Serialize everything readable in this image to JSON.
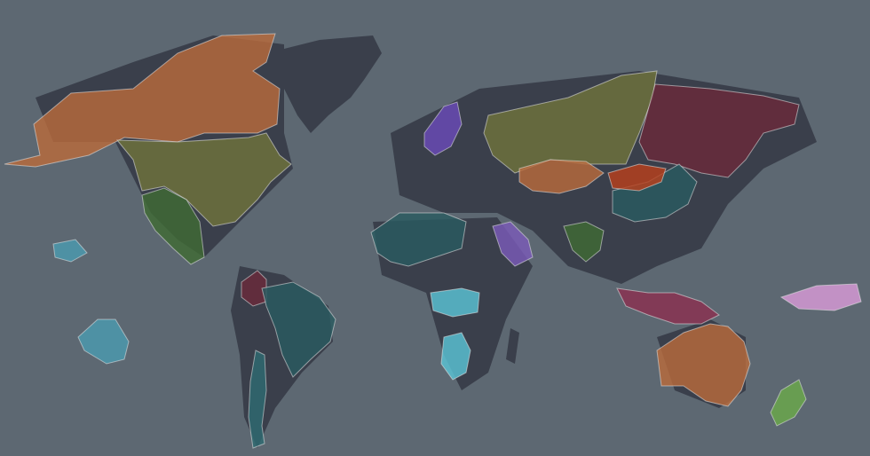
{
  "map": {
    "background_color": "#5d6872",
    "land_color": "#3a3f4b",
    "palette": {
      "orange": "#b86a3c",
      "olive": "#6f733c",
      "green": "#3f6a35",
      "teal": "#2e6a72",
      "darkteal": "#2a5a60",
      "maroon": "#6a2a3a",
      "purple": "#6a4ab8",
      "violet": "#7a5ab8",
      "navy": "#2a2a6a",
      "cyan": "#5ac3d6",
      "pink": "#c87ac8",
      "lightpink": "#d89ad8",
      "lime": "#6aa84a",
      "red": "#b8401c",
      "rose": "#8a3050",
      "skyblue": "#4a9ab0"
    },
    "regions": [
      {
        "name": "north-america-arctic",
        "color": "orange"
      },
      {
        "name": "north-america-mid",
        "color": "olive"
      },
      {
        "name": "mexico",
        "color": "green"
      },
      {
        "name": "south-america-north",
        "color": "maroon"
      },
      {
        "name": "brazil",
        "color": "darkteal"
      },
      {
        "name": "andes",
        "color": "teal"
      },
      {
        "name": "russia",
        "color": "olive"
      },
      {
        "name": "east-siberia",
        "color": "maroon"
      },
      {
        "name": "central-asia",
        "color": "orange"
      },
      {
        "name": "china",
        "color": "darkteal"
      },
      {
        "name": "mongolia",
        "color": "red"
      },
      {
        "name": "north-africa",
        "color": "darkteal"
      },
      {
        "name": "central-africa",
        "color": "cyan"
      },
      {
        "name": "southern-africa",
        "color": "cyan"
      },
      {
        "name": "australia",
        "color": "orange"
      },
      {
        "name": "indonesia",
        "color": "rose"
      },
      {
        "name": "new-zealand",
        "color": "lime"
      },
      {
        "name": "pacific-east",
        "color": "lightpink"
      },
      {
        "name": "hawaii",
        "color": "skyblue"
      },
      {
        "name": "polynesia",
        "color": "skyblue"
      },
      {
        "name": "scandinavia",
        "color": "purple"
      },
      {
        "name": "arabia",
        "color": "violet"
      },
      {
        "name": "india",
        "color": "green"
      }
    ]
  }
}
